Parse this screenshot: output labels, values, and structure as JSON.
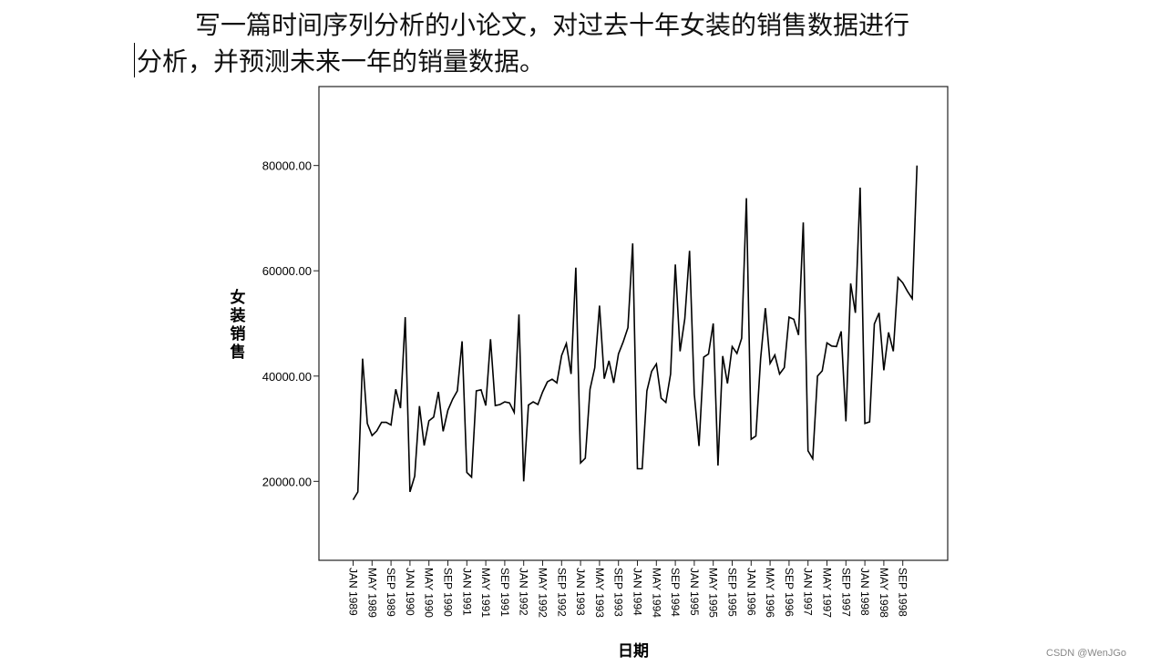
{
  "document": {
    "line1": "写一篇时间序列分析的小论文，对过去十年女装的销售数据进行",
    "line2": "分析，并预测未来一年的销量数据。"
  },
  "watermark": "CSDN @WenJGo",
  "chart_data": {
    "type": "line",
    "title": "",
    "xlabel": "日期",
    "ylabel": "女装销售",
    "ylim": [
      5000,
      95000
    ],
    "y_ticks": [
      20000,
      40000,
      60000,
      80000
    ],
    "y_tick_labels": [
      "20000.00",
      "40000.00",
      "60000.00",
      "80000.00"
    ],
    "x_tick_labels": [
      "JAN 1989",
      "MAY 1989",
      "SEP 1989",
      "JAN 1990",
      "MAY 1990",
      "SEP 1990",
      "JAN 1991",
      "MAY 1991",
      "SEP 1991",
      "JAN 1992",
      "MAY 1992",
      "SEP 1992",
      "JAN 1993",
      "MAY 1993",
      "SEP 1993",
      "JAN 1994",
      "MAY 1994",
      "SEP 1994",
      "JAN 1995",
      "MAY 1995",
      "SEP 1995",
      "JAN 1996",
      "MAY 1996",
      "SEP 1996",
      "JAN 1997",
      "MAY 1997",
      "SEP 1997",
      "JAN 1998",
      "MAY 1998",
      "SEP 1998"
    ],
    "grid": false,
    "line_color": "#000000",
    "values": [
      16500,
      18000,
      43300,
      31000,
      28700,
      29600,
      31200,
      31200,
      30700,
      37500,
      33900,
      51200,
      18000,
      21000,
      34300,
      26800,
      31500,
      32200,
      37000,
      29500,
      33500,
      35600,
      37200,
      46600,
      21700,
      20800,
      37200,
      37400,
      34400,
      47000,
      34400,
      34600,
      35100,
      34900,
      33100,
      51700,
      20000,
      34500,
      35100,
      34600,
      37000,
      38900,
      39400,
      38700,
      43900,
      46200,
      40400,
      60600,
      23500,
      24400,
      37500,
      41600,
      53400,
      39500,
      42900,
      38700,
      44200,
      46500,
      49200,
      65200,
      22400,
      22400,
      37200,
      40900,
      42300,
      35800,
      35000,
      40400,
      61200,
      44700,
      50900,
      63800,
      36600,
      26700,
      43600,
      44200,
      50000,
      23000,
      43800,
      38600,
      45600,
      44300,
      47200,
      73800,
      28000,
      28600,
      43300,
      52900,
      42400,
      44000,
      40400,
      41600,
      51200,
      50800,
      47800,
      69200,
      25800,
      24300,
      40000,
      41000,
      46300,
      45700,
      45600,
      48500,
      31400,
      57600,
      52000,
      75800,
      31000,
      31300,
      49900,
      52000,
      41100,
      48300,
      44700,
      58700,
      57700,
      56100,
      54700,
      80000
    ]
  }
}
